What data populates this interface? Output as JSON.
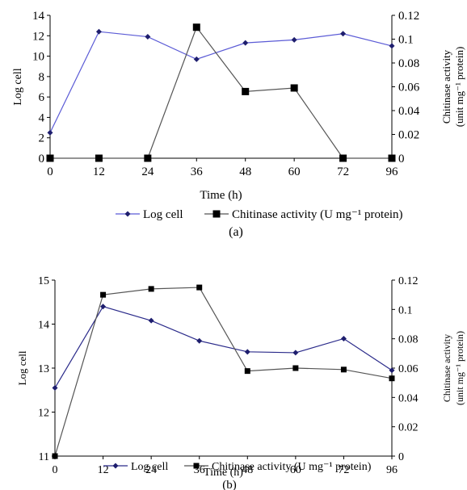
{
  "chart_data": [
    {
      "type": "line",
      "panel_label": "(a)",
      "xlabel": "Time (h)",
      "ylabel": "Log cell",
      "y2label_line1": "Chitinase activity",
      "y2label_line2": "(unit mg⁻¹ protein)",
      "categories": [
        "0",
        "12",
        "24",
        "36",
        "48",
        "60",
        "72",
        "96"
      ],
      "ylim": [
        0,
        14
      ],
      "yticks": [
        "0",
        "2",
        "4",
        "6",
        "8",
        "10",
        "12",
        "14"
      ],
      "y2lim": [
        0,
        0.12
      ],
      "y2ticks": [
        "0",
        "0.02",
        "0.04",
        "0.06",
        "0.08",
        "0.1",
        "0.12"
      ],
      "series": [
        {
          "name": "Log cell",
          "axis": "left",
          "color": "#5b5bd6",
          "marker": "diamond",
          "values": [
            2.5,
            12.4,
            11.9,
            9.7,
            11.3,
            11.6,
            12.2,
            11.0
          ]
        },
        {
          "name": "Chitinase activity (U mg⁻¹ protein)",
          "axis": "right",
          "color": "#555555",
          "marker": "square",
          "values": [
            0.0,
            0.0,
            0.0,
            0.11,
            0.056,
            0.059,
            0.0,
            0.0
          ]
        }
      ],
      "legend": {
        "position": "bottom",
        "items": [
          "Log cell",
          "Chitinase activity (U mg⁻¹ protein)"
        ]
      },
      "grid": false
    },
    {
      "type": "line",
      "panel_label": "(b)",
      "xlabel": "Time (h)",
      "ylabel": "Log cell",
      "y2label_line1": "Chitinase activity",
      "y2label_line2": "(unit mg⁻¹ protein)",
      "categories": [
        "0",
        "12",
        "24",
        "36",
        "48",
        "60",
        "72",
        "96"
      ],
      "ylim": [
        11,
        15
      ],
      "yticks": [
        "11",
        "12",
        "13",
        "14",
        "15"
      ],
      "y2lim": [
        0,
        0.12
      ],
      "y2ticks": [
        "0",
        "0.02",
        "0.04",
        "0.06",
        "0.08",
        "0.1",
        "0.12"
      ],
      "series": [
        {
          "name": "Log cell",
          "axis": "left",
          "color": "#2a2a8a",
          "marker": "diamond",
          "values": [
            12.55,
            14.4,
            14.08,
            13.62,
            13.37,
            13.35,
            13.67,
            12.95
          ]
        },
        {
          "name": "Chitinase activity (U mg⁻¹ protein)",
          "axis": "right",
          "color": "#555555",
          "marker": "square",
          "values": [
            0.0,
            0.11,
            0.114,
            0.115,
            0.058,
            0.06,
            0.059,
            0.053
          ]
        }
      ],
      "legend": {
        "position": "bottom",
        "items": [
          "Log cell",
          "Chitinase activity (U mg⁻¹ protein)"
        ]
      },
      "grid": false
    }
  ]
}
